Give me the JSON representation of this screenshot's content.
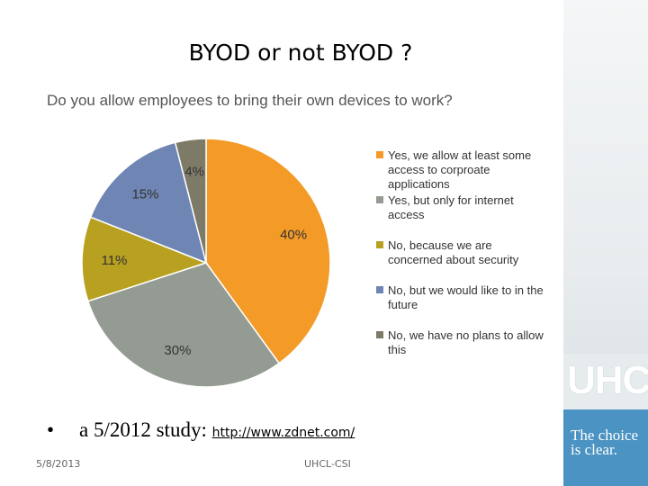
{
  "slide": {
    "title": "BYOD or not BYOD ?",
    "bullet_text": "a 5/2012 study:",
    "bullet_link": "http://www.zdnet.com/",
    "footer_date": "5/8/2013",
    "footer_center": "UHCL-CSI"
  },
  "branding": {
    "logo_text": "UHCL",
    "tagline": "The choice is clear."
  },
  "chart_data": {
    "type": "pie",
    "title": "Do you allow employees to bring their own devices to work?",
    "categories": [
      "Yes, we allow at least some access to corproate applications",
      "Yes, but only for internet access",
      "No, because we are concerned about security",
      "No, but we would like to in the future",
      "No, we have no plans to allow this"
    ],
    "values": [
      40,
      30,
      11,
      15,
      4
    ],
    "labels": [
      "40%",
      "30%",
      "11%",
      "15%",
      "4%"
    ],
    "colors": [
      "#f39a27",
      "#949b92",
      "#b8a020",
      "#6f85b3",
      "#7d7a68"
    ],
    "legend_position": "right"
  }
}
